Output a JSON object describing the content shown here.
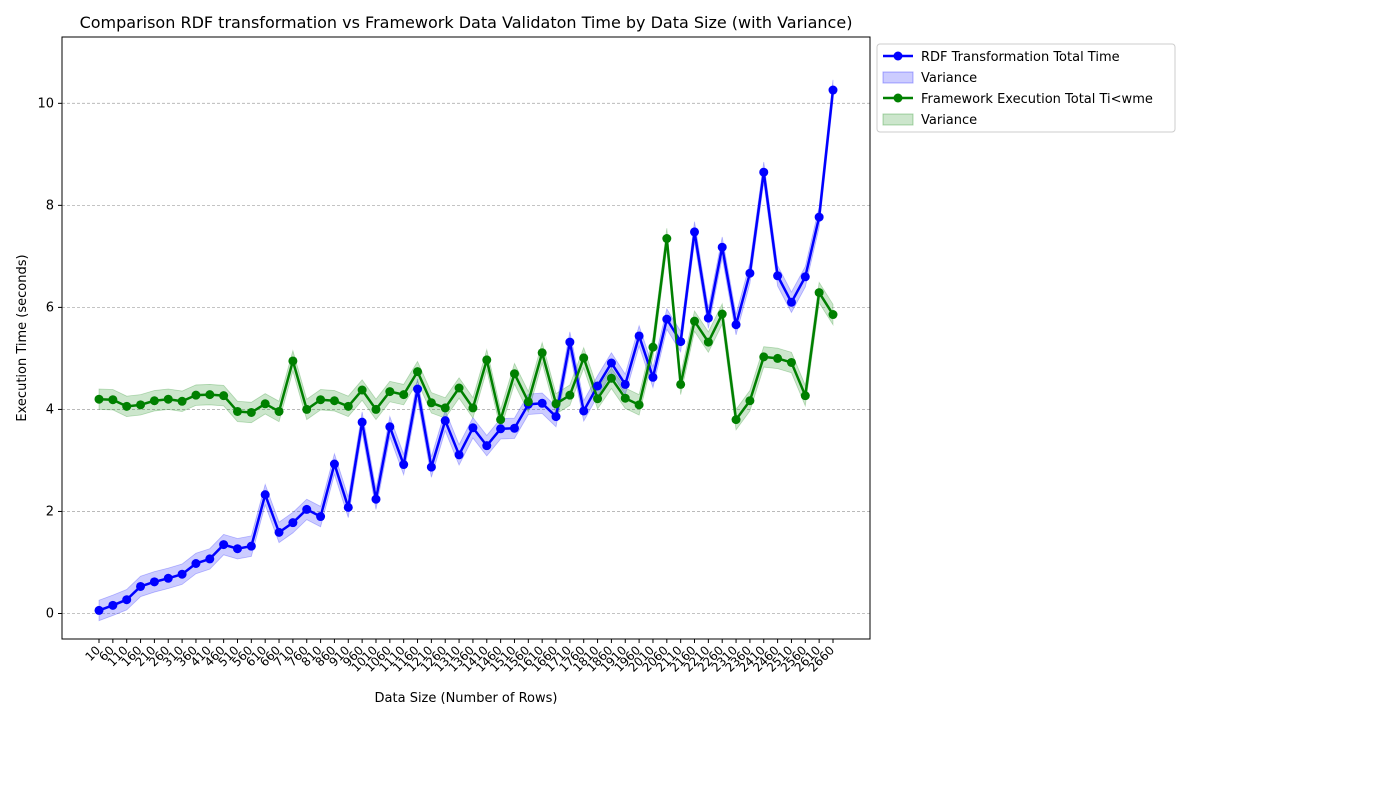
{
  "chart_data": {
    "type": "line",
    "title": "Comparison RDF transformation vs Framework Data Validaton Time by Data Size (with Variance)",
    "xlabel": "Data Size (Number of Rows)",
    "ylabel": "Execution Time (seconds)",
    "ylim": [
      -0.5,
      11.3
    ],
    "yticks": [
      0,
      2,
      4,
      6,
      8,
      10
    ],
    "grid": "y-dashed",
    "legend_position": "outside-right-top",
    "x": [
      10,
      60,
      110,
      160,
      210,
      260,
      310,
      360,
      410,
      460,
      510,
      560,
      610,
      660,
      710,
      760,
      810,
      860,
      910,
      960,
      1010,
      1060,
      1110,
      1160,
      1210,
      1260,
      1310,
      1360,
      1410,
      1460,
      1510,
      1560,
      1610,
      1660,
      1710,
      1760,
      1810,
      1860,
      1910,
      1960,
      2010,
      2060,
      2110,
      2160,
      2210,
      2260,
      2310,
      2360,
      2410,
      2460,
      2510,
      2560,
      2610,
      2660
    ],
    "series": [
      {
        "name": "RDF Transformation Total Time",
        "color": "#0000ff",
        "values": [
          0.06,
          0.16,
          0.27,
          0.53,
          0.62,
          0.69,
          0.77,
          0.98,
          1.07,
          1.35,
          1.27,
          1.32,
          2.33,
          1.59,
          1.78,
          2.04,
          1.9,
          2.93,
          2.08,
          3.75,
          2.24,
          3.66,
          2.92,
          4.4,
          2.87,
          3.78,
          3.11,
          3.64,
          3.29,
          3.62,
          3.63,
          4.1,
          4.12,
          3.86,
          5.32,
          3.97,
          4.46,
          4.91,
          4.49,
          5.44,
          4.63,
          5.77,
          5.33,
          7.48,
          5.79,
          7.18,
          5.66,
          6.67,
          8.65,
          6.62,
          6.1,
          6.6,
          7.77,
          10.26
        ],
        "variance_band": 0.2,
        "variance_label": "Variance"
      },
      {
        "name": "Framework Execution Total Ti<wme",
        "color": "#008000",
        "values": [
          4.2,
          4.19,
          4.06,
          4.09,
          4.17,
          4.2,
          4.16,
          4.28,
          4.29,
          4.27,
          3.96,
          3.94,
          4.11,
          3.96,
          4.95,
          4.0,
          4.19,
          4.17,
          4.06,
          4.38,
          4.0,
          4.35,
          4.29,
          4.74,
          4.13,
          4.03,
          4.42,
          4.03,
          4.97,
          3.8,
          4.7,
          4.15,
          5.11,
          4.11,
          4.28,
          5.01,
          4.21,
          4.61,
          4.22,
          4.09,
          5.22,
          7.35,
          4.49,
          5.73,
          5.32,
          5.87,
          3.8,
          4.17,
          5.03,
          5.0,
          4.92,
          4.27,
          6.29,
          5.86
        ],
        "variance_band": 0.2,
        "variance_label": " Variance"
      }
    ]
  }
}
